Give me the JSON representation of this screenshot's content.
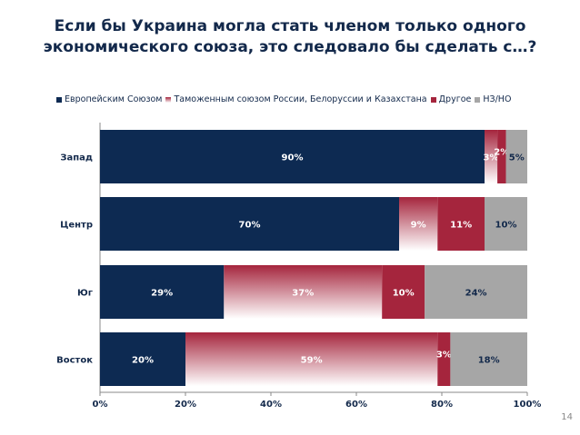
{
  "title_line1": "Если бы Украина могла стать членом только одного",
  "title_line2": "экономического союза, это следовало бы сделать с…?",
  "page_number": "14",
  "chart_data": {
    "type": "bar",
    "orientation": "horizontal-stacked-100",
    "categories": [
      "Запад",
      "Центр",
      "Юг",
      "Восток"
    ],
    "series": [
      {
        "name": "Европейским Союзом",
        "color": "#0d2a52",
        "label_color": "#ffffff",
        "values": [
          90,
          70,
          29,
          20
        ]
      },
      {
        "name": "Таможенным союзом России, Белоруссии и Казахстана",
        "color": "#a5253d",
        "gradient": true,
        "label_color": "#ffffff",
        "values": [
          3,
          9,
          37,
          59
        ]
      },
      {
        "name": "Другое",
        "color": "#a5253d",
        "label_color": "#ffffff",
        "values": [
          2,
          11,
          10,
          3
        ]
      },
      {
        "name": "НЗ/НО",
        "color": "#a6a6a6",
        "label_color": "#13294b",
        "values": [
          5,
          10,
          24,
          18
        ]
      }
    ],
    "xlim": [
      0,
      100
    ],
    "xticks": [
      "0%",
      "20%",
      "40%",
      "60%",
      "80%",
      "100%"
    ],
    "legend_position": "top"
  }
}
